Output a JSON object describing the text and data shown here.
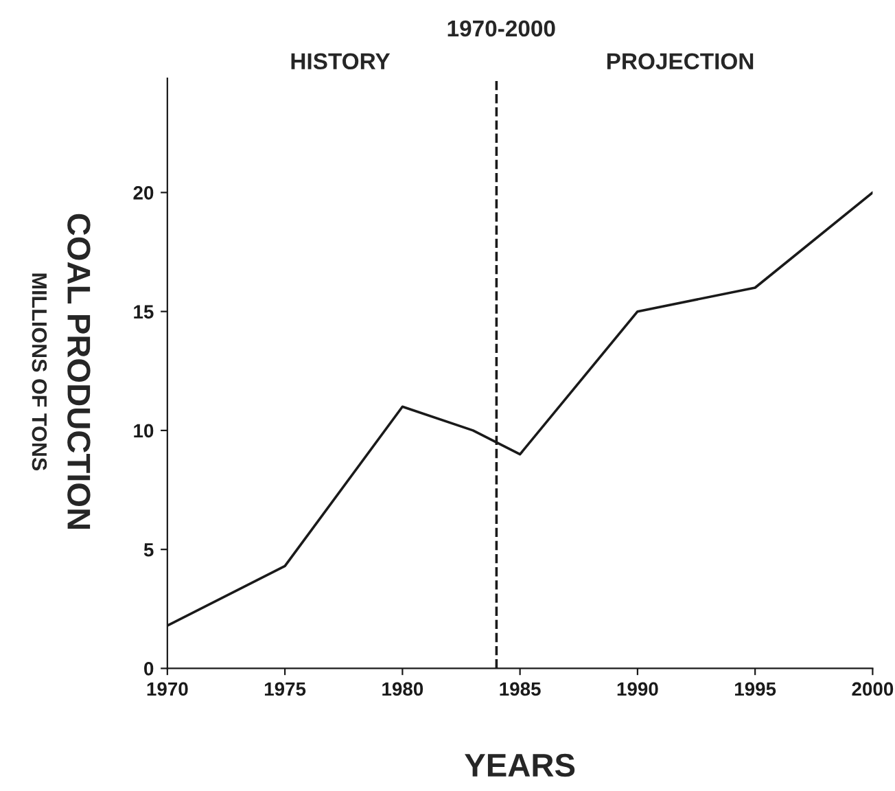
{
  "chart_data": {
    "type": "line",
    "title": "1970-2000",
    "xlabel": "YEARS",
    "ylabel": "COAL PRODUCTION",
    "annotations": [
      "MILLIONS OF TONS",
      "HISTORY",
      "PROJECTION"
    ],
    "x": [
      1970,
      1975,
      1980,
      1983,
      1985,
      1990,
      1995,
      2000
    ],
    "series": [
      {
        "color": "#1a1a1a",
        "values": [
          1.8,
          4.3,
          11,
          10,
          9,
          15,
          16,
          20
        ]
      }
    ],
    "xlim": [
      1970,
      2000
    ],
    "ylim": [
      0,
      24.8
    ],
    "xticks": [
      1970,
      1975,
      1980,
      1985,
      1990,
      1995,
      2000
    ],
    "yticks": [
      0,
      5,
      10,
      15,
      20
    ],
    "ref_lines": [
      {
        "axis": "x",
        "value": 1984,
        "line_style": "dashed",
        "color": "#1a1a1a"
      }
    ],
    "grid": false,
    "legend": false,
    "marker": "none",
    "line_style": "solid"
  }
}
